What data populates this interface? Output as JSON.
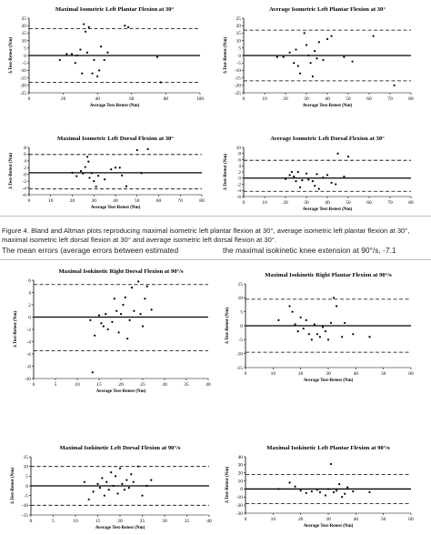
{
  "caption": "Figure 4. Bland and Altman plots reproducing maximal isometric left plantar flexion at 30°, average isometric left plantar flexion at 30°, maximal isometric left dorsal flexion at 30° and average isometric left dorsal flexion at 30°.",
  "body_text": {
    "left": "The mean errors (average errors between estimated",
    "right": "the maximal isokinetic knee extension at 90°/s, -7.1"
  },
  "chart_data": [
    {
      "type": "scatter",
      "title": "Maximal Isometric Left Plantar Flexion at 30°",
      "xlabel": "Average Test-Retest (Nm)",
      "ylabel": "Δ Test-Retest (Nm)",
      "xlim": [
        0,
        100
      ],
      "ylim": [
        -25,
        25
      ],
      "xticks": [
        0,
        20,
        40,
        60,
        80,
        100
      ],
      "yticks": [
        -25,
        -20,
        -15,
        -10,
        -5,
        0,
        5,
        10,
        15,
        20,
        25
      ],
      "mean": 0,
      "limits": [
        18,
        -18
      ],
      "points": [
        [
          18,
          -3
        ],
        [
          22,
          1
        ],
        [
          25,
          1
        ],
        [
          27,
          -5
        ],
        [
          28,
          0
        ],
        [
          30,
          4
        ],
        [
          31,
          -12
        ],
        [
          32,
          21
        ],
        [
          33,
          16
        ],
        [
          34,
          2
        ],
        [
          35,
          19
        ],
        [
          37,
          -12
        ],
        [
          38,
          -3
        ],
        [
          40,
          -14
        ],
        [
          41,
          -10
        ],
        [
          42,
          6
        ],
        [
          44,
          -3
        ],
        [
          46,
          2
        ],
        [
          56,
          20
        ],
        [
          58,
          19
        ],
        [
          75,
          -1
        ],
        [
          77,
          -18
        ]
      ]
    },
    {
      "type": "scatter",
      "title": "Average Isometric Left Plantar Flexion at 30°",
      "xlabel": "Average Test-Retest (Nm)",
      "ylabel": "Δ Test-Retest (Nm)",
      "xlim": [
        0,
        80
      ],
      "ylim": [
        -25,
        25
      ],
      "xticks": [
        0,
        10,
        20,
        30,
        40,
        50,
        60,
        70,
        80
      ],
      "yticks": [
        -25,
        -20,
        -15,
        -10,
        -5,
        0,
        5,
        10,
        15,
        20,
        25
      ],
      "mean": 0,
      "limits": [
        17,
        -17
      ],
      "points": [
        [
          16,
          -1
        ],
        [
          19,
          -1
        ],
        [
          22,
          2
        ],
        [
          24,
          -5
        ],
        [
          25,
          4
        ],
        [
          26,
          -7
        ],
        [
          27,
          -12
        ],
        [
          29,
          15
        ],
        [
          30,
          7
        ],
        [
          31,
          0
        ],
        [
          32,
          -5
        ],
        [
          33,
          -14
        ],
        [
          34,
          3
        ],
        [
          35,
          -2
        ],
        [
          36,
          9
        ],
        [
          38,
          -3
        ],
        [
          40,
          11
        ],
        [
          42,
          13
        ],
        [
          48,
          -1
        ],
        [
          52,
          -4
        ],
        [
          62,
          13
        ],
        [
          72,
          -20
        ]
      ]
    },
    {
      "type": "scatter",
      "title": "Maximal Isometric Left Dorsal Flexion at 30°",
      "xlabel": "Average Test-Retest (Nm)",
      "ylabel": "Δ Test-Retest (Nm)",
      "xlim": [
        0,
        80
      ],
      "ylim": [
        -6,
        8
      ],
      "xticks": [
        0,
        10,
        20,
        30,
        40,
        50,
        60,
        70,
        80
      ],
      "yticks": [
        -6,
        -4,
        -2,
        0,
        2,
        4,
        6,
        8
      ],
      "mean": 0.5,
      "limits": [
        5.9,
        -4.3
      ],
      "points": [
        [
          20,
          0.5
        ],
        [
          22,
          -0.5
        ],
        [
          24,
          1
        ],
        [
          25,
          0.3
        ],
        [
          26,
          2.2
        ],
        [
          27,
          5.2
        ],
        [
          27.5,
          3.8
        ],
        [
          28,
          -1
        ],
        [
          29,
          0.4
        ],
        [
          30,
          -2
        ],
        [
          31,
          -3.6
        ],
        [
          32,
          -0.4
        ],
        [
          35,
          -1.5
        ],
        [
          38,
          1.5
        ],
        [
          40,
          2
        ],
        [
          42,
          2
        ],
        [
          43,
          -0.3
        ],
        [
          45,
          -3.5
        ],
        [
          50,
          7.2
        ],
        [
          52,
          0.4
        ],
        [
          55,
          7.5
        ]
      ]
    },
    {
      "type": "scatter",
      "title": "Average Isometric Left Dorsal Flexion at 30°",
      "xlabel": "Average Test-Retest (Nm)",
      "ylabel": "Δ Test-Retest (Nm)",
      "xlim": [
        0,
        80
      ],
      "ylim": [
        -6,
        10
      ],
      "xticks": [
        0,
        10,
        20,
        30,
        40,
        50,
        60,
        70,
        80
      ],
      "yticks": [
        -6,
        -4,
        -2,
        0,
        2,
        4,
        6,
        8,
        10
      ],
      "mean": 0,
      "limits": [
        5.8,
        -4.3
      ],
      "points": [
        [
          20,
          -0.3
        ],
        [
          22,
          1
        ],
        [
          23,
          2
        ],
        [
          24,
          0.5
        ],
        [
          25,
          -1
        ],
        [
          26,
          2
        ],
        [
          27,
          -3
        ],
        [
          28,
          -0.7
        ],
        [
          30,
          1.5
        ],
        [
          31,
          -0.5
        ],
        [
          33,
          -1
        ],
        [
          34,
          -2.5
        ],
        [
          35,
          1.3
        ],
        [
          36,
          -3.5
        ],
        [
          38,
          0.2
        ],
        [
          40,
          1
        ],
        [
          42,
          -1.5
        ],
        [
          44,
          -2
        ],
        [
          45,
          8
        ],
        [
          48,
          0.5
        ],
        [
          50,
          7
        ]
      ]
    },
    {
      "type": "scatter",
      "title": "Maximal Isokinetic Right Dorsal Flexion at 90°/s",
      "xlabel": "Average Test-Retest (Nm)",
      "ylabel": "Δ Test-Retest (Nm)",
      "xlim": [
        0,
        40
      ],
      "ylim": [
        -10,
        6
      ],
      "xticks": [
        0,
        5,
        10,
        15,
        20,
        25,
        30,
        35,
        40
      ],
      "yticks": [
        -10,
        -8,
        -6,
        -4,
        -2,
        0,
        2,
        4,
        6
      ],
      "mean": 0,
      "limits": [
        5.3,
        -5.5
      ],
      "points": [
        [
          13,
          -0.5
        ],
        [
          13.5,
          -9
        ],
        [
          14,
          -3
        ],
        [
          15,
          0.3
        ],
        [
          15.5,
          -1
        ],
        [
          16,
          -1.5
        ],
        [
          16.5,
          0.5
        ],
        [
          17,
          -2
        ],
        [
          18,
          -0.8
        ],
        [
          18.5,
          3
        ],
        [
          19,
          1
        ],
        [
          19.5,
          -2.5
        ],
        [
          20,
          0.5
        ],
        [
          20.5,
          2
        ],
        [
          21,
          3.2
        ],
        [
          21.5,
          -3.5
        ],
        [
          22,
          -0.5
        ],
        [
          22.5,
          4.8
        ],
        [
          23,
          1
        ],
        [
          24,
          5.8
        ],
        [
          24.5,
          0.5
        ],
        [
          25,
          -1.5
        ],
        [
          25.5,
          3
        ],
        [
          26,
          5
        ],
        [
          27,
          1.2
        ]
      ]
    },
    {
      "type": "scatter",
      "title": "Maximal Isokinetic Right Plantar Flexion at 90°/s",
      "xlabel": "Average Test-Retest (Nm)",
      "ylabel": "Δ Test-Retest (Nm)",
      "xlim": [
        0,
        60
      ],
      "ylim": [
        -15,
        15
      ],
      "xticks": [
        0,
        10,
        20,
        30,
        40,
        50,
        60
      ],
      "yticks": [
        -15,
        -10,
        -5,
        0,
        5,
        10,
        15
      ],
      "mean": 0,
      "limits": [
        9.5,
        -9.5
      ],
      "points": [
        [
          12,
          2
        ],
        [
          16,
          7
        ],
        [
          17,
          5
        ],
        [
          18,
          0.5
        ],
        [
          19,
          -2
        ],
        [
          20,
          3
        ],
        [
          21,
          -1
        ],
        [
          22,
          2
        ],
        [
          23,
          -3
        ],
        [
          24,
          -5
        ],
        [
          25,
          0.5
        ],
        [
          26,
          -3
        ],
        [
          27,
          -4
        ],
        [
          28,
          -0.5
        ],
        [
          29,
          -2
        ],
        [
          30,
          -5
        ],
        [
          31,
          1
        ],
        [
          32,
          10
        ],
        [
          33,
          7
        ],
        [
          35,
          -4
        ],
        [
          36,
          1
        ],
        [
          39,
          -3
        ],
        [
          45,
          -4
        ]
      ]
    },
    {
      "type": "scatter",
      "title": "Maximal Isokinetic Left Dorsal Flexion at 90°/s",
      "xlabel": "Average Test-Retest (Nm)",
      "ylabel": "Δ Test-Retest (Nm)",
      "xlim": [
        0,
        40
      ],
      "ylim": [
        -15,
        15
      ],
      "xticks": [
        0,
        5,
        10,
        15,
        20,
        25,
        30,
        35,
        40
      ],
      "yticks": [
        -15,
        -10,
        -5,
        0,
        5,
        10,
        15
      ],
      "mean": 0,
      "limits": [
        10,
        -10
      ],
      "points": [
        [
          12,
          2
        ],
        [
          13,
          -7
        ],
        [
          14,
          -3
        ],
        [
          15,
          1
        ],
        [
          15.5,
          -1
        ],
        [
          16,
          4
        ],
        [
          16.5,
          -5
        ],
        [
          17,
          2
        ],
        [
          17.5,
          -2
        ],
        [
          18,
          7
        ],
        [
          18.5,
          0
        ],
        [
          19,
          5
        ],
        [
          19.5,
          -4
        ],
        [
          20,
          9
        ],
        [
          20.5,
          1
        ],
        [
          21,
          -2
        ],
        [
          21.5,
          3
        ],
        [
          22,
          -1
        ],
        [
          22.5,
          6
        ],
        [
          23,
          2
        ],
        [
          24,
          10
        ],
        [
          25,
          -5
        ],
        [
          26,
          0
        ],
        [
          27,
          3
        ]
      ]
    },
    {
      "type": "scatter",
      "title": "Maximal Isokinetic Left Plantar Flexion at 90°/s",
      "xlabel": "Average Test-Retest (Nm)",
      "ylabel": "Δ Test-Retest (Nm)",
      "xlim": [
        0,
        60
      ],
      "ylim": [
        -30,
        40
      ],
      "xticks": [
        0,
        10,
        20,
        30,
        40,
        50,
        60
      ],
      "yticks": [
        -30,
        -20,
        -10,
        0,
        10,
        20,
        30,
        40
      ],
      "mean": 0,
      "limits": [
        18,
        -18
      ],
      "points": [
        [
          12,
          0
        ],
        [
          16,
          8
        ],
        [
          18,
          3
        ],
        [
          20,
          -2
        ],
        [
          22,
          -5
        ],
        [
          24,
          -3
        ],
        [
          26,
          -1
        ],
        [
          27,
          -4
        ],
        [
          29,
          -8
        ],
        [
          30,
          0
        ],
        [
          31,
          31
        ],
        [
          32,
          -4
        ],
        [
          33,
          -2
        ],
        [
          34,
          6
        ],
        [
          35,
          -10
        ],
        [
          36,
          -6
        ],
        [
          37,
          2
        ],
        [
          39,
          -3
        ],
        [
          45,
          -4
        ]
      ]
    }
  ]
}
